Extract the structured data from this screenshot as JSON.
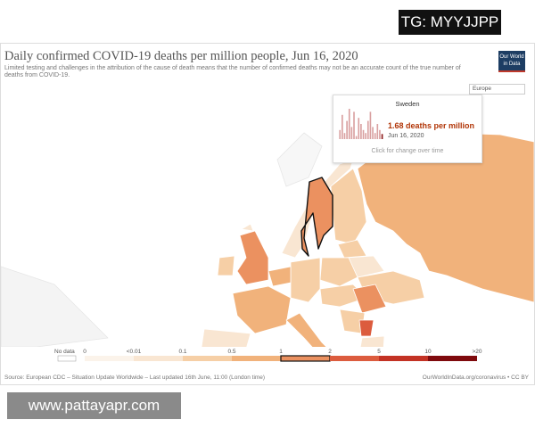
{
  "watermark_top": "TG: MYYJJPP",
  "watermark_bottom": "www.pattayapr.com",
  "header": {
    "title": "Daily confirmed COVID-19 deaths per million people, Jun 16, 2020",
    "subtitle": "Limited testing and challenges in the attribution of the cause of death means that the number of confirmed deaths may not be an accurate count of the true number of deaths from COVID-19.",
    "logo": [
      "Our World",
      "in Data"
    ]
  },
  "region_select": "Europe",
  "tooltip": {
    "country": "Sweden",
    "value": "1.68 deaths per million",
    "date": "Jun 16, 2020",
    "hint": "Click for change over time",
    "history": [
      3,
      8,
      2,
      6,
      10,
      4,
      9,
      1,
      7,
      5,
      3,
      2,
      6,
      9,
      4,
      2,
      5,
      3,
      1.68
    ]
  },
  "legend": {
    "no_data": "No data",
    "labels": [
      "0",
      "<0.01",
      "0.1",
      "0.5",
      "1",
      "2",
      "5",
      "10",
      ">20"
    ],
    "colors": [
      "#fbf3ea",
      "#f9e6d2",
      "#f6cfa6",
      "#f1b27b",
      "#eb9160",
      "#dc5c3e",
      "#c33224",
      "#7f0a0d"
    ],
    "highlight": 4
  },
  "footer": {
    "source": "Source: European CDC – Situation Update Worldwide – Last updated 16th June, 11:00 (London time)",
    "link": "OurWorldInData.org/coronavirus • CC BY"
  }
}
